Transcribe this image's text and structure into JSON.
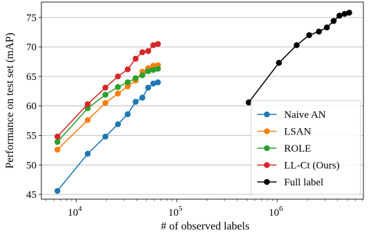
{
  "chart_data": {
    "type": "line",
    "xscale": "log",
    "xlabel": "# of observed labels",
    "ylabel": "Performance on test set (mAP)",
    "xlim": [
      4500,
      7200000
    ],
    "ylim": [
      44.2,
      77.6
    ],
    "yticks": [
      45,
      50,
      55,
      60,
      65,
      70,
      75
    ],
    "xticks": [
      {
        "value": 10000,
        "base": "10",
        "exp": "4"
      },
      {
        "value": 100000,
        "base": "10",
        "exp": "5"
      },
      {
        "value": 1000000,
        "base": "10",
        "exp": "6"
      }
    ],
    "grid": "horizontal",
    "legend_position": "lower right",
    "series": [
      {
        "name": "Naive AN",
        "color": "#1f77b4",
        "x": [
          6500,
          13000,
          19500,
          26000,
          32500,
          39000,
          45500,
          52000,
          58500,
          65000
        ],
        "y": [
          45.6,
          51.9,
          54.8,
          56.9,
          58.6,
          60.7,
          61.4,
          63.1,
          63.8,
          64.0
        ]
      },
      {
        "name": "LSAN",
        "color": "#ff7f0e",
        "x": [
          6500,
          13000,
          19500,
          26000,
          32500,
          39000,
          45500,
          52000,
          58500,
          65000
        ],
        "y": [
          52.6,
          57.6,
          60.5,
          62.1,
          63.3,
          64.3,
          65.8,
          66.4,
          66.8,
          66.9
        ]
      },
      {
        "name": "ROLE",
        "color": "#2ca02c",
        "x": [
          6500,
          13000,
          19500,
          26000,
          32500,
          39000,
          45500,
          52000,
          58500,
          65000
        ],
        "y": [
          53.9,
          59.6,
          61.9,
          63.2,
          64.0,
          64.7,
          65.2,
          65.9,
          66.1,
          66.3
        ]
      },
      {
        "name": "LL-Ct (Ours)",
        "color": "#d62728",
        "x": [
          6500,
          13000,
          19500,
          26000,
          32500,
          39000,
          45500,
          52000,
          58500,
          65000
        ],
        "y": [
          54.8,
          60.3,
          63.1,
          65.0,
          66.2,
          68.0,
          69.1,
          69.3,
          70.3,
          70.5
        ]
      },
      {
        "name": "Full label",
        "color": "#000000",
        "x": [
          520000,
          1040000,
          1560000,
          2080000,
          2600000,
          3120000,
          3640000,
          4160000,
          4680000,
          5200000
        ],
        "y": [
          60.6,
          67.3,
          70.3,
          72.0,
          72.6,
          73.3,
          74.4,
          75.3,
          75.6,
          75.8
        ]
      }
    ]
  }
}
